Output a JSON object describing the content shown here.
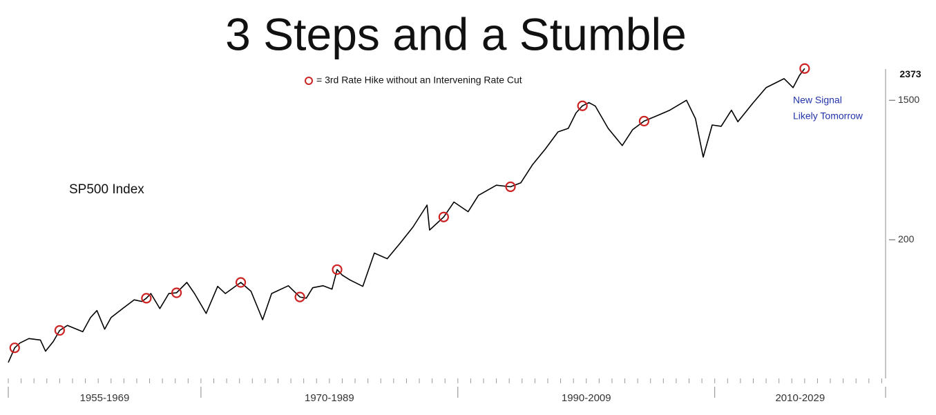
{
  "chart_data": {
    "type": "line",
    "title": "3 Steps and a Stumble",
    "yscale": "log",
    "xlim": [
      1955,
      2023.3
    ],
    "ylim": [
      27,
      2500
    ],
    "yticks": [
      200,
      1500
    ],
    "grid": false,
    "x_groups": [
      "1955-1969",
      "1970-1989",
      "1990-2009",
      "2010-2029"
    ],
    "annotations": [
      "New Signal",
      "Likely Tomorrow"
    ],
    "series": [
      {
        "name": "SP500 Index",
        "type": "line",
        "color": "#000000",
        "x": [
          1955.0,
          1955.5,
          1955.9,
          1956.6,
          1957.5,
          1957.9,
          1958.5,
          1959.0,
          1959.6,
          1960.8,
          1961.4,
          1961.9,
          1962.5,
          1963.0,
          1963.9,
          1964.8,
          1965.4,
          1965.75,
          1966.1,
          1966.8,
          1967.5,
          1968.1,
          1968.9,
          1969.5,
          1970.4,
          1971.3,
          1971.9,
          1973.1,
          1973.9,
          1974.8,
          1975.5,
          1976.8,
          1977.7,
          1978.2,
          1978.7,
          1979.5,
          1980.2,
          1980.6,
          1981.0,
          1981.6,
          1982.6,
          1983.5,
          1984.5,
          1985.5,
          1986.5,
          1987.6,
          1987.8,
          1988.9,
          1989.7,
          1990.8,
          1991.6,
          1993.0,
          1994.1,
          1994.9,
          1995.8,
          1996.8,
          1997.8,
          1998.6,
          1999.2,
          1999.7,
          2000.2,
          2000.7,
          2001.7,
          2002.8,
          2003.6,
          2004.5,
          2005.5,
          2006.5,
          2007.8,
          2008.5,
          2009.1,
          2009.8,
          2010.5,
          2011.3,
          2011.8,
          2013.0,
          2014.0,
          2015.4,
          2016.1,
          2016.6,
          2017.0
        ],
        "values": [
          34,
          42,
          45,
          48,
          47,
          40,
          46,
          54,
          58,
          53,
          65,
          72,
          55,
          65,
          74,
          84,
          82,
          86,
          92,
          74,
          92,
          93,
          108,
          92,
          69,
          102,
          92,
          108,
          95,
          63,
          92,
          103,
          87.5,
          86,
          100,
          103,
          98,
          130,
          120,
          112,
          102,
          165,
          152,
          190,
          240,
          330,
          230,
          278,
          345,
          300,
          380,
          440,
          430,
          455,
          590,
          740,
          950,
          1000,
          1250,
          1385,
          1450,
          1380,
          1000,
          780,
          980,
          1110,
          1200,
          1300,
          1500,
          1150,
          660,
          1050,
          1030,
          1300,
          1100,
          1450,
          1800,
          2050,
          1800,
          2150,
          2373
        ]
      },
      {
        "name": "= 3rd Rate Hike without an Intervening Rate Cut",
        "type": "scatter",
        "color": "#cc2222",
        "x": [
          1955.5,
          1959.0,
          1965.75,
          1968.1,
          1973.1,
          1977.7,
          1980.6,
          1988.9,
          1994.1,
          1999.7,
          2004.5,
          2017.0
        ],
        "values": [
          42,
          54,
          86,
          93,
          108,
          87.5,
          130,
          278,
          430,
          1385,
          1110,
          2373
        ]
      }
    ]
  }
}
